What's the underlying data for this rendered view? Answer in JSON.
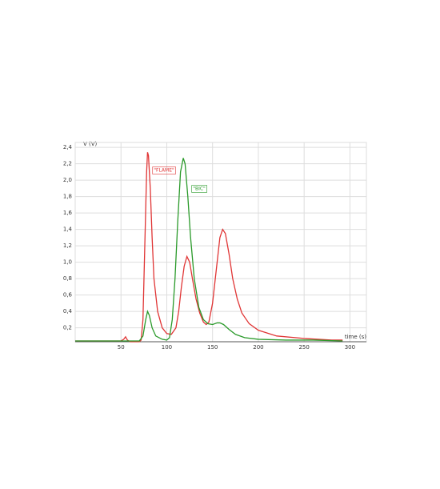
{
  "chart_data": {
    "type": "line",
    "x_label": "time (s)",
    "y_label": "V (V)",
    "xlim": [
      0,
      318
    ],
    "ylim": [
      0.03,
      2.46
    ],
    "xticks": [
      50,
      100,
      150,
      200,
      250,
      300
    ],
    "yticks": [
      {
        "value": 0.2,
        "label": "0,2"
      },
      {
        "value": 0.4,
        "label": "0,4"
      },
      {
        "value": 0.6,
        "label": "0,6"
      },
      {
        "value": 0.8,
        "label": "0,8"
      },
      {
        "value": 1.0,
        "label": "1,0"
      },
      {
        "value": 1.2,
        "label": "1,2"
      },
      {
        "value": 1.4,
        "label": "1,4"
      },
      {
        "value": 1.6,
        "label": "1,6"
      },
      {
        "value": 1.8,
        "label": "1,8"
      },
      {
        "value": 2.0,
        "label": "2,0"
      },
      {
        "value": 2.2,
        "label": "2,2"
      },
      {
        "value": 2.4,
        "label": "2,4"
      }
    ],
    "grid": true,
    "series": [
      {
        "name": "\"FLAME\"",
        "color": "#e03535",
        "x": [
          0,
          50,
          53,
          55,
          57,
          60,
          70,
          72,
          74,
          76,
          78,
          79,
          80,
          82,
          84,
          86,
          90,
          95,
          100,
          105,
          110,
          113,
          116,
          119,
          122,
          125,
          128,
          132,
          136,
          140,
          143,
          146,
          150,
          154,
          158,
          161,
          164,
          168,
          172,
          177,
          182,
          190,
          200,
          220,
          250,
          280,
          292
        ],
        "values": [
          0.04,
          0.04,
          0.06,
          0.09,
          0.05,
          0.03,
          0.03,
          0.05,
          0.3,
          1.2,
          2.1,
          2.34,
          2.3,
          1.9,
          1.3,
          0.8,
          0.4,
          0.2,
          0.13,
          0.12,
          0.2,
          0.4,
          0.7,
          0.95,
          1.07,
          1.0,
          0.8,
          0.55,
          0.38,
          0.27,
          0.24,
          0.27,
          0.5,
          0.9,
          1.3,
          1.4,
          1.35,
          1.1,
          0.8,
          0.55,
          0.38,
          0.25,
          0.17,
          0.1,
          0.07,
          0.05,
          0.05
        ]
      },
      {
        "name": "\"BIC\"",
        "color": "#2a9a2a",
        "x": [
          0,
          70,
          74,
          77,
          79,
          81,
          84,
          88,
          95,
          100,
          103,
          106,
          109,
          112,
          115,
          118,
          120,
          123,
          126,
          130,
          135,
          140,
          145,
          150,
          155,
          158,
          162,
          168,
          175,
          185,
          200,
          230,
          260,
          292
        ],
        "values": [
          0.04,
          0.04,
          0.1,
          0.3,
          0.4,
          0.35,
          0.2,
          0.1,
          0.06,
          0.05,
          0.08,
          0.3,
          0.8,
          1.5,
          2.1,
          2.27,
          2.2,
          1.8,
          1.3,
          0.8,
          0.45,
          0.3,
          0.25,
          0.24,
          0.26,
          0.26,
          0.24,
          0.18,
          0.12,
          0.08,
          0.06,
          0.05,
          0.05,
          0.04
        ]
      }
    ]
  }
}
